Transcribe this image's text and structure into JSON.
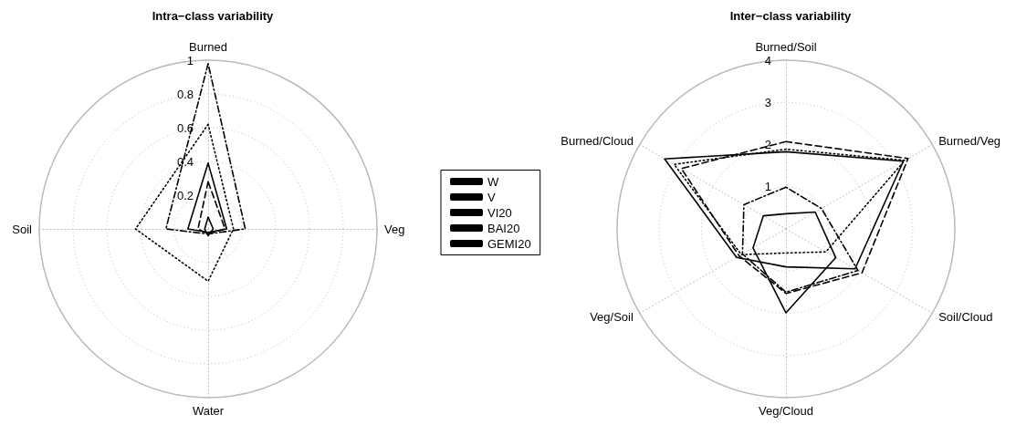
{
  "chart_data": [
    {
      "type": "radar",
      "title": "Intra−class variability",
      "categories": [
        "Burned",
        "Veg",
        "Water",
        "Soil"
      ],
      "ylim": [
        0,
        1
      ],
      "yticks": [
        0.2,
        0.4,
        0.6,
        0.8,
        1
      ],
      "grid": true,
      "marker": "none",
      "series": [
        {
          "color": "#000000",
          "line_style": "dashed",
          "values": [
            0.28,
            0.1,
            0.03,
            0.06
          ]
        },
        {
          "color": "#000000",
          "line_style": "solid",
          "values": [
            0.07,
            0.03,
            0.04,
            0.02
          ]
        },
        {
          "color": "#000000",
          "line_style": "dotted",
          "values": [
            0.62,
            0.15,
            0.31,
            0.43
          ]
        },
        {
          "color": "#000000",
          "line_style": "dashdot",
          "values": [
            0.98,
            0.22,
            0.03,
            0.25
          ]
        },
        {
          "color": "#000000",
          "line_style": "solid",
          "values": [
            0.39,
            0.11,
            0.02,
            0.12
          ]
        }
      ]
    },
    {
      "type": "radar",
      "title": "Inter−class variability",
      "categories": [
        "Burned/Soil",
        "Burned/Veg",
        "Soil/Cloud",
        "Veg/Cloud",
        "Veg/Soil",
        "Burned/Cloud"
      ],
      "ylim": [
        0,
        4
      ],
      "yticks": [
        1,
        2,
        3,
        4
      ],
      "grid": true,
      "marker": "none",
      "legend": "left",
      "series": [
        {
          "name": "W",
          "color": "#000000",
          "line_style": "dashed",
          "values": [
            2.07,
            3.34,
            2.08,
            1.53,
            1.28,
            2.86
          ]
        },
        {
          "name": "V",
          "color": "#000000",
          "line_style": "solid",
          "values": [
            0.36,
            0.8,
            1.36,
            1.99,
            0.9,
            0.62
          ]
        },
        {
          "name": "VI20",
          "color": "#000000",
          "line_style": "dotted",
          "values": [
            1.89,
            3.25,
            1.09,
            0.57,
            1.22,
            3.06
          ]
        },
        {
          "name": "BAI20",
          "color": "#000000",
          "line_style": "dashdot",
          "values": [
            0.99,
            0.97,
            1.97,
            1.5,
            1.19,
            1.15
          ]
        },
        {
          "name": "GEMI20",
          "color": "#000000",
          "line_style": "solid",
          "values": [
            1.83,
            3.21,
            1.89,
            0.9,
            1.35,
            3.32
          ]
        }
      ]
    }
  ]
}
